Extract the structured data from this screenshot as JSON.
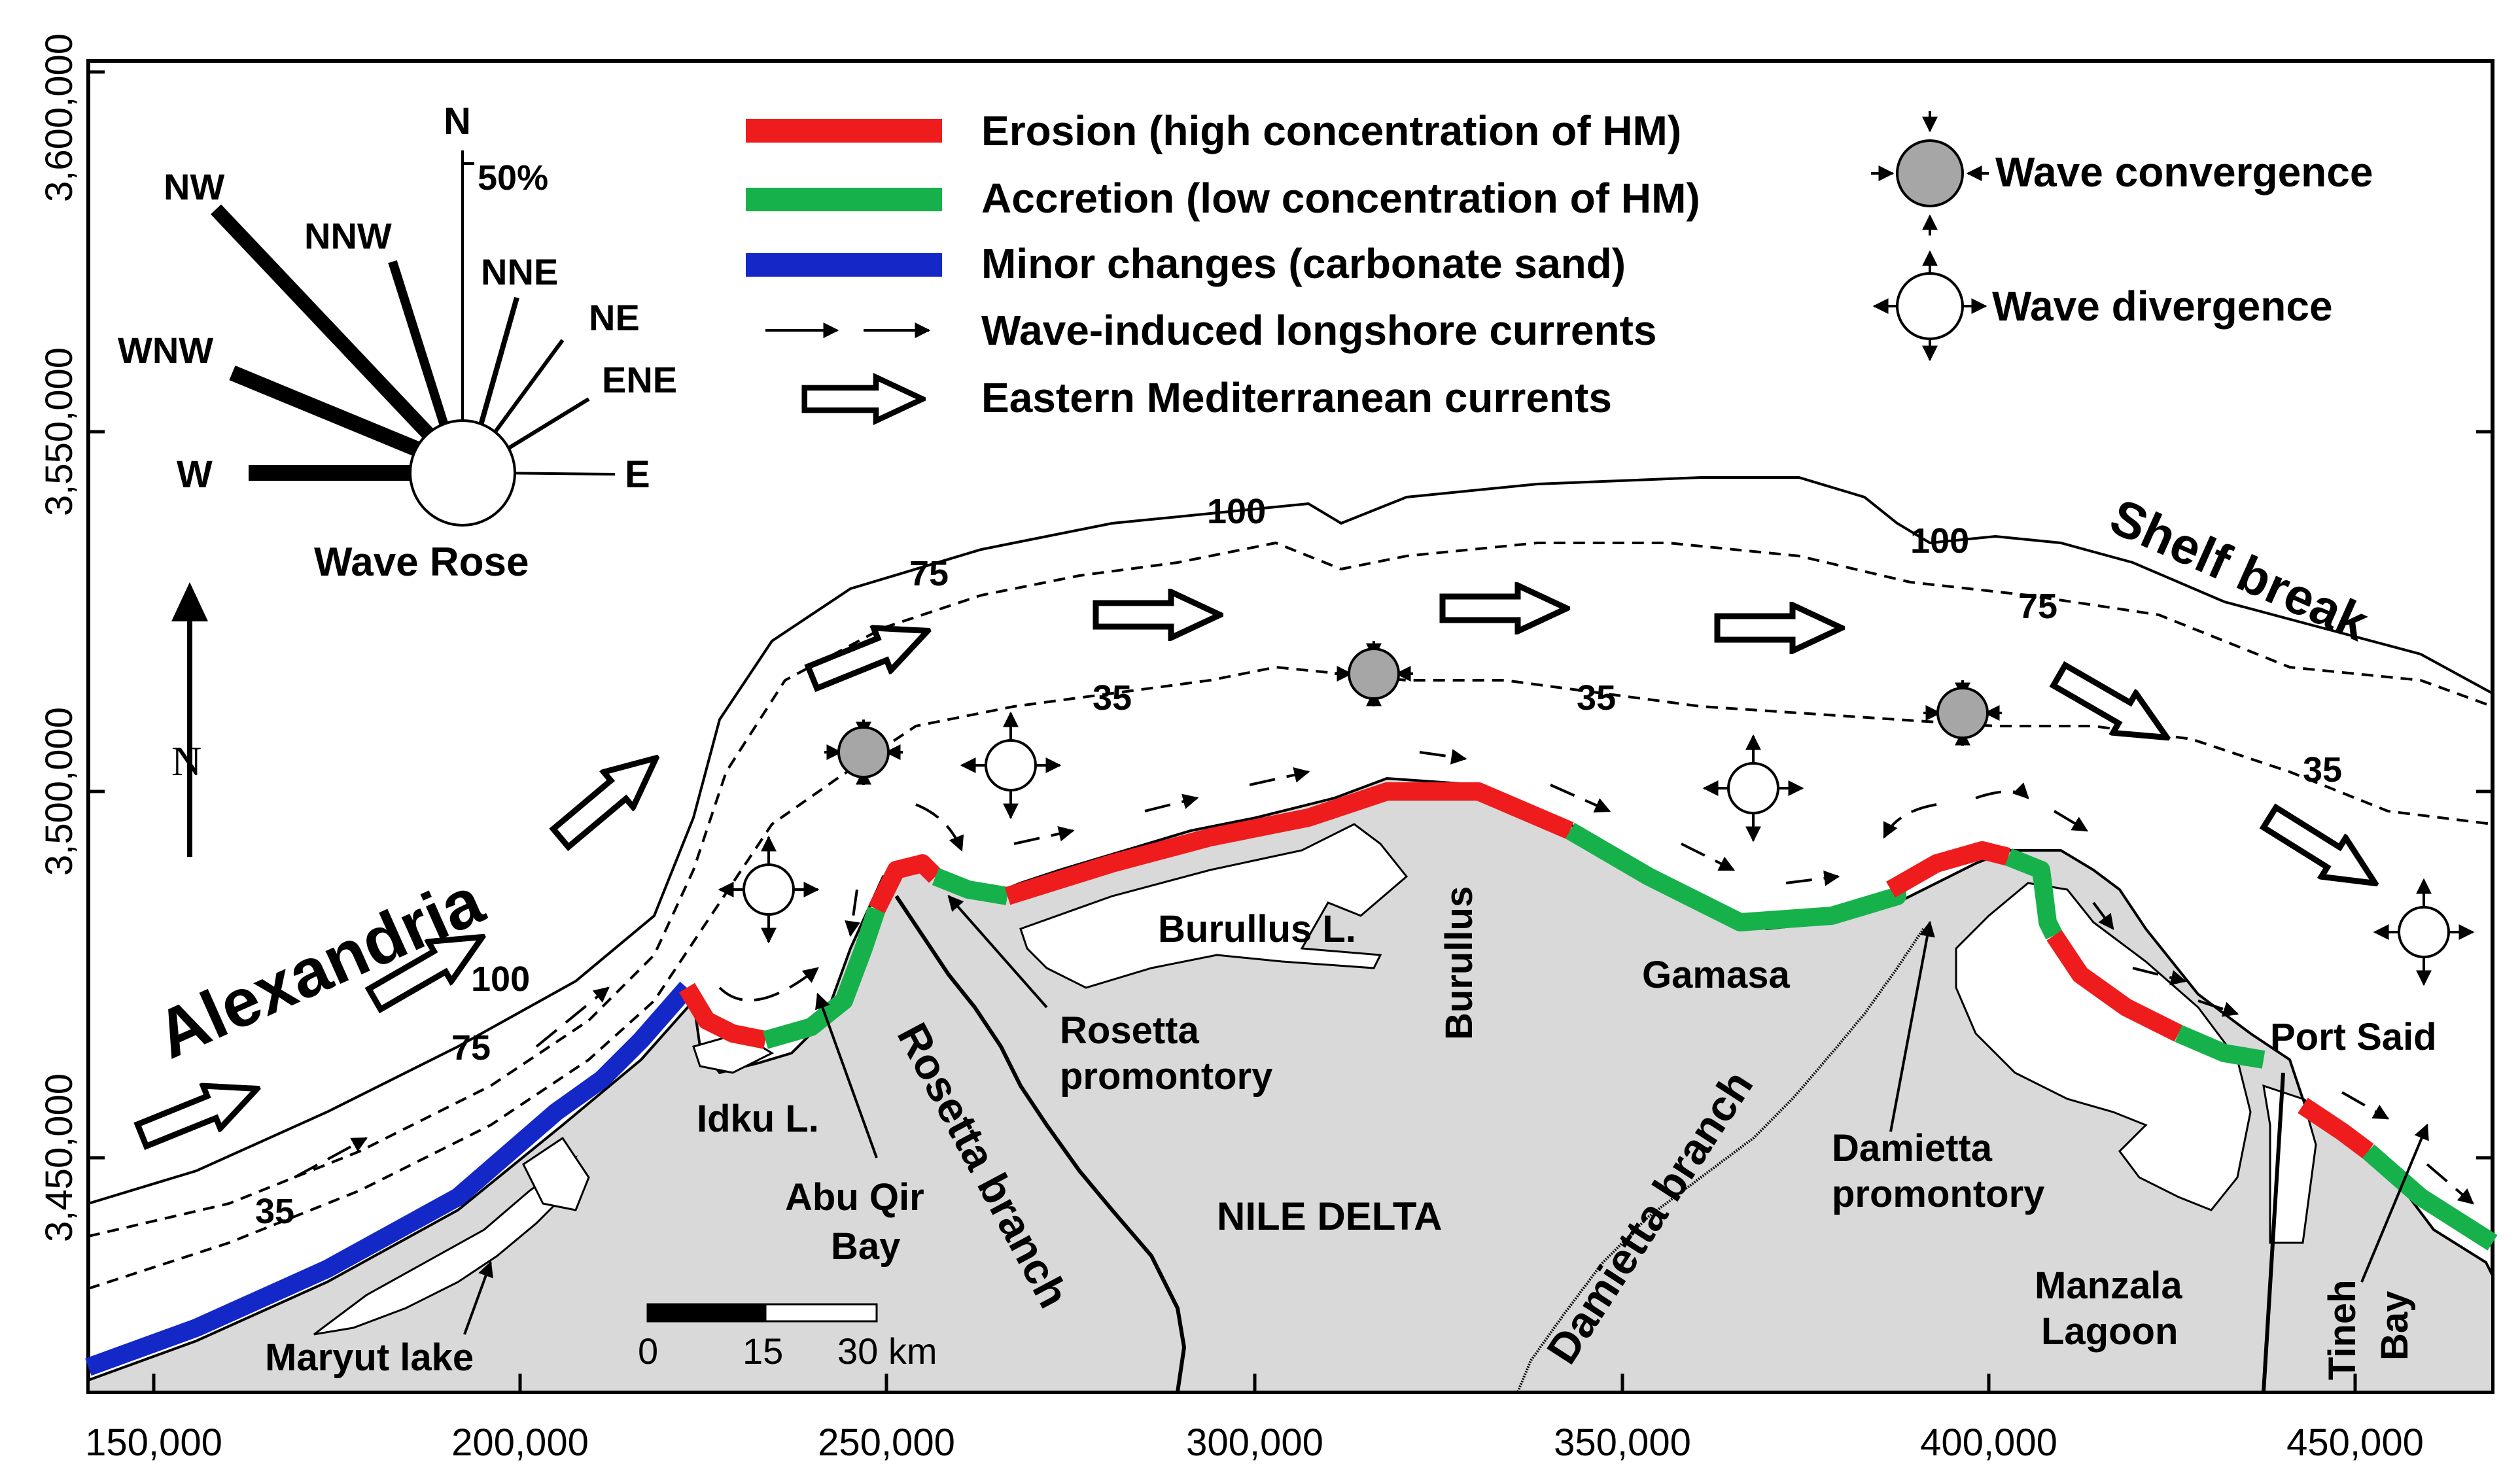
{
  "axes": {
    "x_ticks": [
      "150,000",
      "200,000",
      "250,000",
      "300,000",
      "350,000",
      "400,000",
      "450,000"
    ],
    "y_ticks": [
      "3,600,000",
      "3,550,000",
      "3,500,000",
      "3,450,000"
    ]
  },
  "legend": {
    "erosion": "Erosion (high concentration of HM)",
    "accretion": "Accretion (low concentration of HM)",
    "minor": "Minor changes (carbonate sand)",
    "longshore": "Wave-induced longshore currents",
    "mediterranean": "Eastern Mediterranean currents",
    "convergence": "Wave convergence",
    "divergence": "Wave divergence"
  },
  "wave_rose": {
    "title": "Wave Rose",
    "scale": "50%",
    "directions": [
      "N",
      "NNE",
      "NE",
      "ENE",
      "E",
      "W",
      "WNW",
      "NW",
      "NNW"
    ]
  },
  "north_arrow": "N",
  "places": {
    "alexandria": "Alexandria",
    "idku": "Idku L.",
    "abu_qir": "Abu Qir",
    "abu_qir_bay": "Bay",
    "rosetta_branch": "Rosetta branch",
    "rosetta_prom_1": "Rosetta",
    "rosetta_prom_2": "promontory",
    "burullus_lake": "Burullus L.",
    "burullus": "Burullus",
    "nile_delta": "NILE DELTA",
    "damietta_branch": "Damietta branch",
    "damietta_prom_1": "Damietta",
    "damietta_prom_2": "promontory",
    "gamasa": "Gamasa",
    "manzala_1": "Manzala",
    "manzala_2": "Lagoon",
    "port_said": "Port Said",
    "tineh": "Tineh",
    "tineh_bay": "Bay",
    "maryut": "Maryut lake",
    "shelf_break": "Shelf break"
  },
  "contours": {
    "c100": "100",
    "c75": "75",
    "c35": "35"
  },
  "scale_bar": {
    "t0": "0",
    "t15": "15",
    "t30": "30 km"
  },
  "colors": {
    "erosion": "#ee1c1c",
    "accretion": "#17b14b",
    "minor": "#1428c8",
    "land": "#d9d9d9",
    "node": "#a6a6a6"
  }
}
